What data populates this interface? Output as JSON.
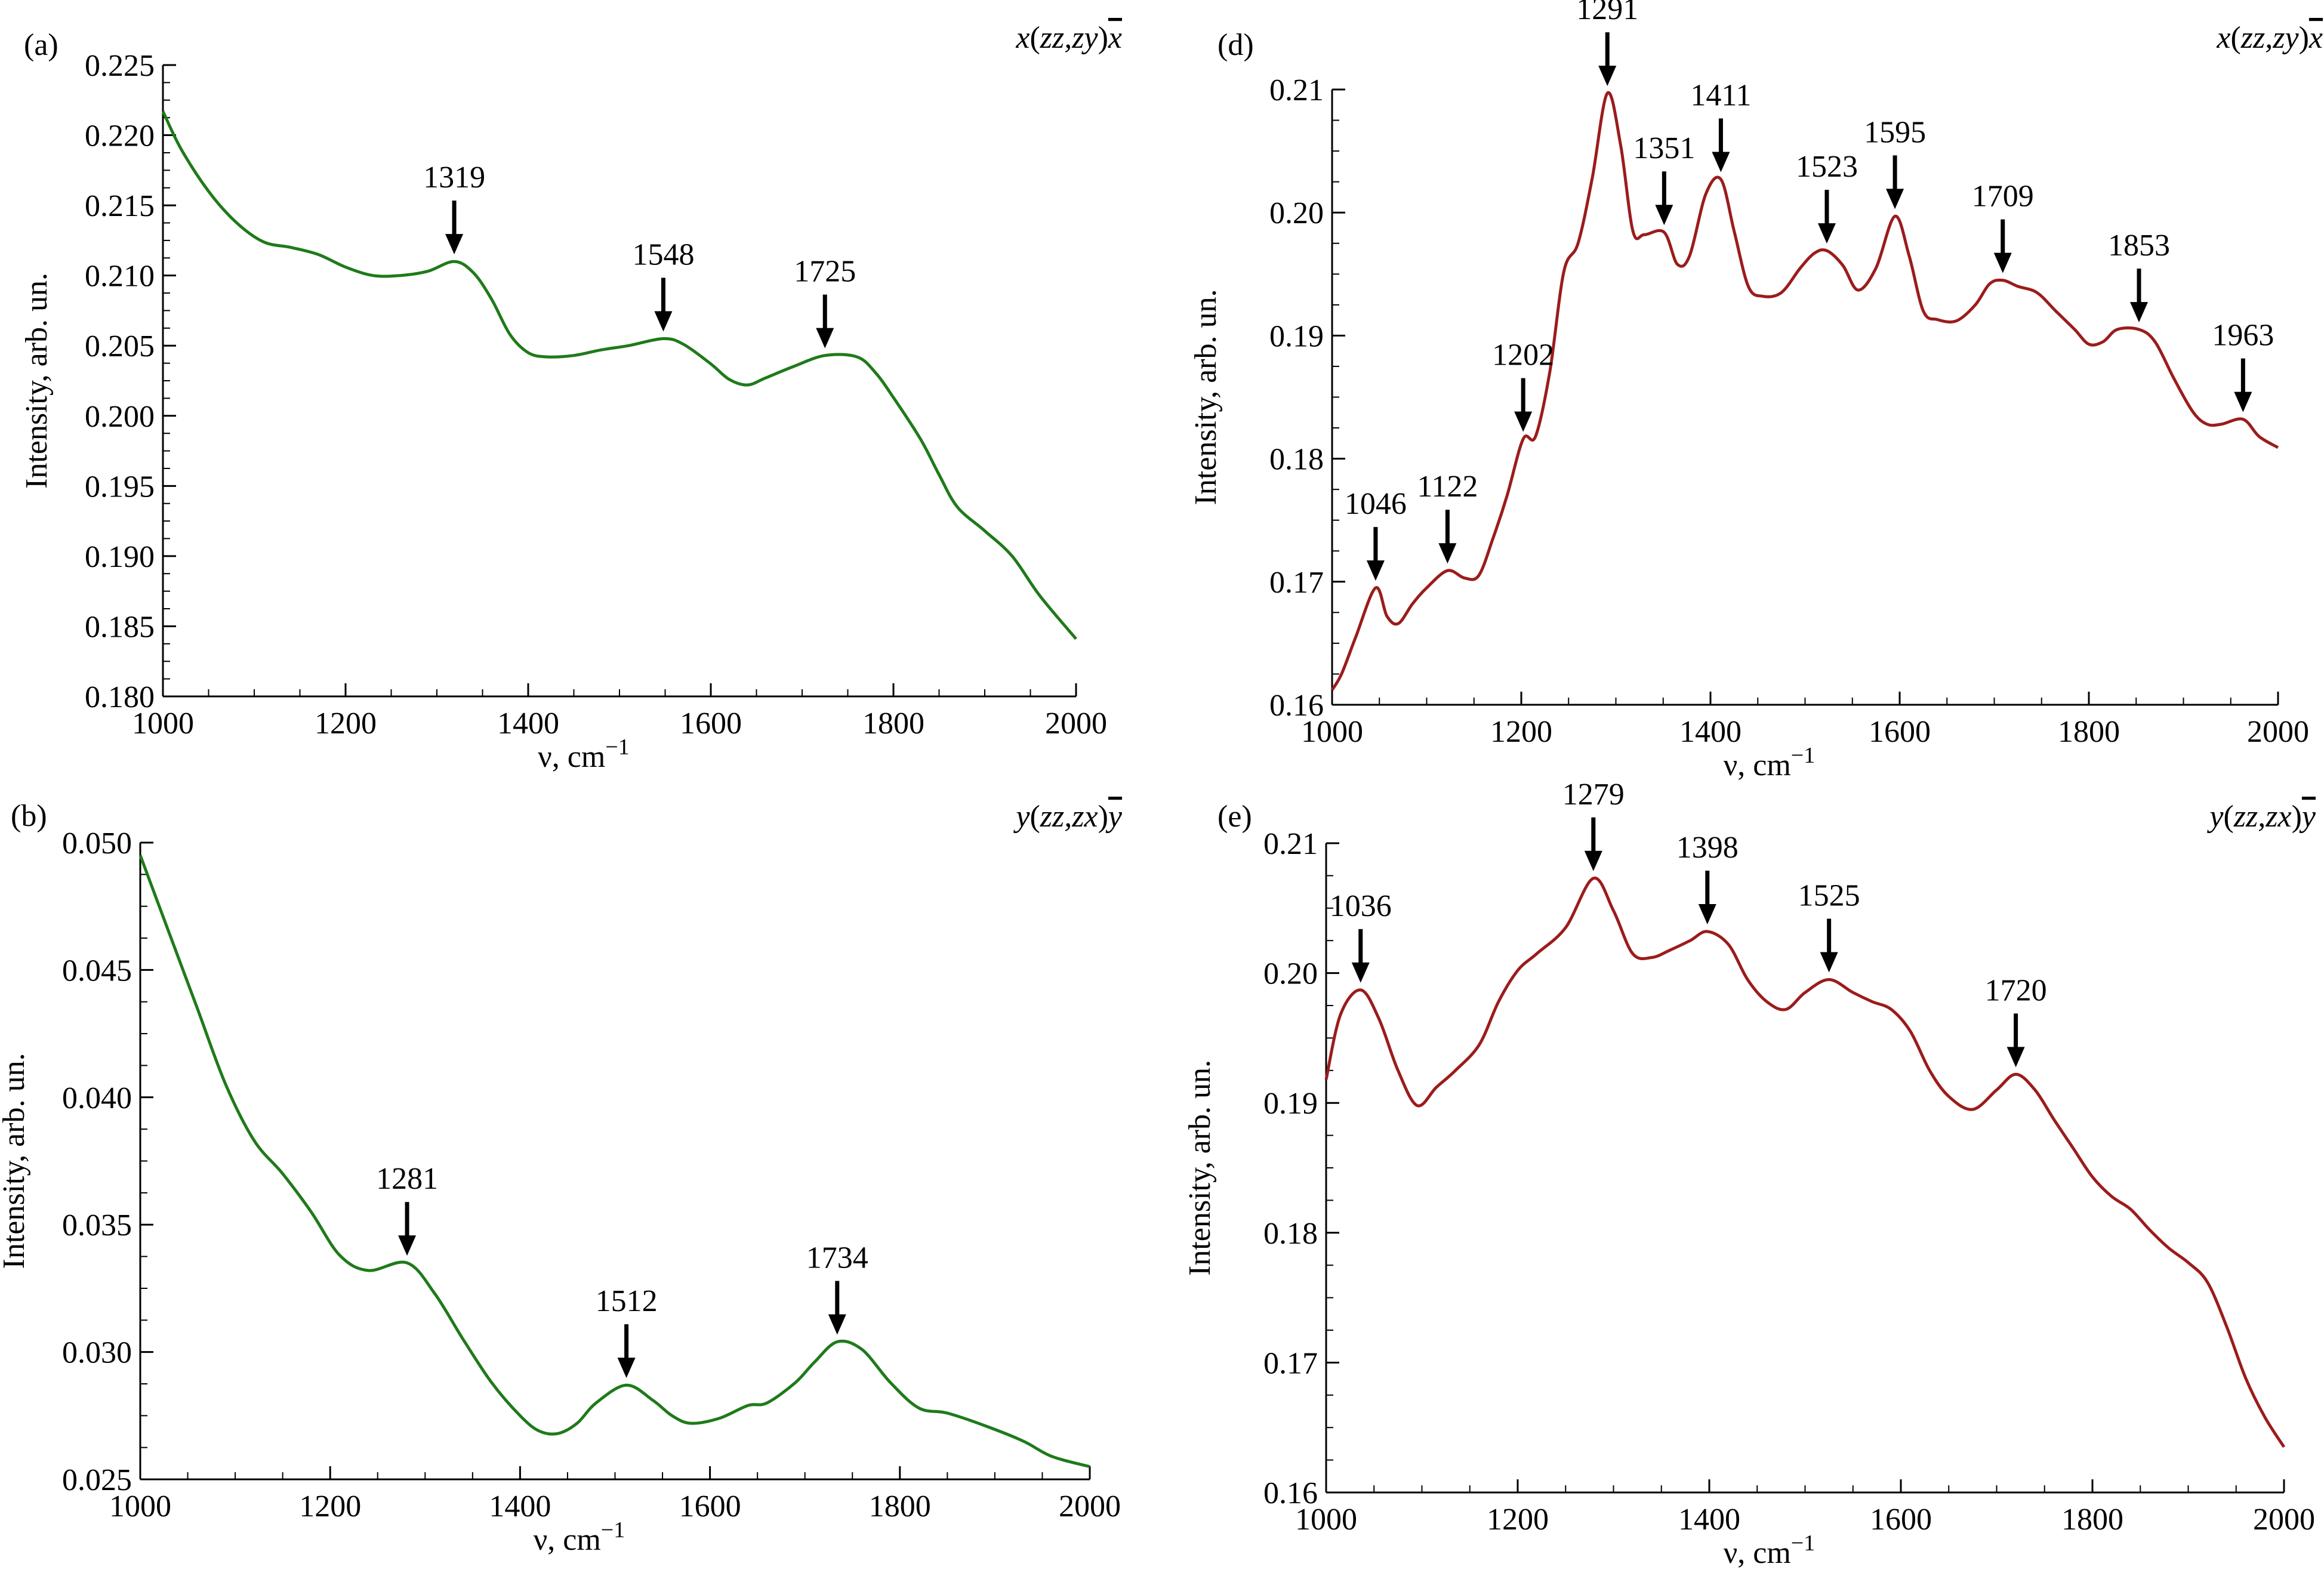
{
  "chart_data": [
    {
      "type": "line",
      "panel_label": "(a)",
      "geometry": "x(zz,zy)x̅",
      "xlabel": "ν, cm⁻¹",
      "ylabel": "Intensity, arb. un.",
      "xlim": [
        1000,
        2000
      ],
      "ylim": [
        0.18,
        0.225
      ],
      "xticks": [
        1000,
        1200,
        1400,
        1600,
        1800,
        2000
      ],
      "yticks": [
        "0.180",
        "0.185",
        "0.190",
        "0.195",
        "0.200",
        "0.205",
        "0.210",
        "0.215",
        "0.220",
        "0.225"
      ],
      "color": "#1f7a1a",
      "series": [
        {
          "name": "x(zz,zy)x̅",
          "x": [
            1000,
            1020,
            1050,
            1080,
            1110,
            1140,
            1170,
            1200,
            1230,
            1260,
            1290,
            1319,
            1340,
            1360,
            1380,
            1400,
            1420,
            1450,
            1480,
            1510,
            1548,
            1570,
            1600,
            1620,
            1640,
            1660,
            1690,
            1725,
            1760,
            1780,
            1800,
            1830,
            1850,
            1870,
            1900,
            1930,
            1960,
            2000
          ],
          "y": [
            0.2217,
            0.219,
            0.216,
            0.2138,
            0.2124,
            0.212,
            0.2115,
            0.2106,
            0.21,
            0.21,
            0.2103,
            0.211,
            0.2102,
            0.2083,
            0.2058,
            0.2045,
            0.2042,
            0.2043,
            0.2047,
            0.205,
            0.2055,
            0.2051,
            0.2037,
            0.2026,
            0.2022,
            0.2027,
            0.2035,
            0.2043,
            0.2042,
            0.2031,
            0.2013,
            0.1983,
            0.1958,
            0.1935,
            0.1918,
            0.19,
            0.1872,
            0.1841
          ]
        }
      ],
      "annotations": [
        {
          "label": "1319",
          "x": 1319,
          "y": 0.211
        },
        {
          "label": "1548",
          "x": 1548,
          "y": 0.2055
        },
        {
          "label": "1725",
          "x": 1725,
          "y": 0.2043
        }
      ]
    },
    {
      "type": "line",
      "panel_label": "(b)",
      "geometry": "y(zz,zx)y̅",
      "xlabel": "ν, cm⁻¹",
      "ylabel": "Intensity, arb. un.",
      "xlim": [
        1000,
        2000
      ],
      "ylim": [
        0.025,
        0.05
      ],
      "xticks": [
        1000,
        1200,
        1400,
        1600,
        1800,
        2000
      ],
      "yticks": [
        "0.025",
        "0.030",
        "0.035",
        "0.040",
        "0.045",
        "0.050"
      ],
      "color": "#1f7a1a",
      "series": [
        {
          "name": "y(zz,zx)y̅",
          "x": [
            1000,
            1030,
            1060,
            1090,
            1120,
            1150,
            1180,
            1210,
            1240,
            1281,
            1310,
            1340,
            1370,
            1400,
            1420,
            1440,
            1460,
            1480,
            1512,
            1540,
            1560,
            1580,
            1610,
            1640,
            1660,
            1690,
            1710,
            1734,
            1760,
            1790,
            1820,
            1850,
            1890,
            1930,
            1960,
            2000
          ],
          "y": [
            0.0495,
            0.0465,
            0.0435,
            0.0405,
            0.0383,
            0.037,
            0.0355,
            0.0338,
            0.0332,
            0.0335,
            0.0323,
            0.0305,
            0.0288,
            0.0275,
            0.0269,
            0.0268,
            0.0272,
            0.028,
            0.0287,
            0.0281,
            0.0275,
            0.0272,
            0.0274,
            0.0279,
            0.028,
            0.0288,
            0.0296,
            0.0304,
            0.0301,
            0.0288,
            0.0278,
            0.0276,
            0.0271,
            0.0265,
            0.0259,
            0.0255
          ]
        }
      ],
      "annotations": [
        {
          "label": "1281",
          "x": 1281,
          "y": 0.0335
        },
        {
          "label": "1512",
          "x": 1512,
          "y": 0.0287
        },
        {
          "label": "1734",
          "x": 1734,
          "y": 0.0304
        }
      ]
    },
    {
      "type": "line",
      "panel_label": "(d)",
      "geometry": "x(zz,zy)x̅",
      "xlabel": "ν, cm⁻¹",
      "ylabel": "Intensity, arb. un.",
      "xlim": [
        1000,
        2000
      ],
      "ylim": [
        0.16,
        0.21
      ],
      "xticks": [
        1000,
        1200,
        1400,
        1600,
        1800,
        2000
      ],
      "yticks": [
        "0.16",
        "0.17",
        "0.18",
        "0.19",
        "0.20",
        "0.21"
      ],
      "color": "#9b1c1c",
      "series": [
        {
          "name": "x(zz,zy)x̅",
          "x": [
            1000,
            1010,
            1025,
            1046,
            1058,
            1070,
            1085,
            1100,
            1122,
            1140,
            1155,
            1170,
            1185,
            1202,
            1215,
            1230,
            1245,
            1260,
            1275,
            1291,
            1305,
            1318,
            1330,
            1351,
            1365,
            1378,
            1395,
            1411,
            1425,
            1440,
            1455,
            1475,
            1495,
            1510,
            1523,
            1540,
            1556,
            1575,
            1595,
            1610,
            1625,
            1640,
            1660,
            1680,
            1695,
            1709,
            1725,
            1745,
            1765,
            1785,
            1800,
            1815,
            1830,
            1853,
            1870,
            1890,
            1910,
            1925,
            1940,
            1963,
            1980,
            2000
          ],
          "y": [
            0.1612,
            0.1625,
            0.1655,
            0.1695,
            0.1672,
            0.1666,
            0.1682,
            0.1695,
            0.1709,
            0.1703,
            0.1705,
            0.1735,
            0.177,
            0.1816,
            0.1818,
            0.187,
            0.1952,
            0.1975,
            0.2028,
            0.2097,
            0.2055,
            0.1985,
            0.1982,
            0.1984,
            0.1958,
            0.1965,
            0.2015,
            0.2027,
            0.1985,
            0.194,
            0.1932,
            0.1935,
            0.1955,
            0.1967,
            0.1969,
            0.1957,
            0.1937,
            0.1955,
            0.1997,
            0.1965,
            0.192,
            0.1913,
            0.1912,
            0.1925,
            0.1942,
            0.1945,
            0.194,
            0.1935,
            0.192,
            0.1905,
            0.1893,
            0.1895,
            0.1905,
            0.1905,
            0.1895,
            0.1865,
            0.1838,
            0.1828,
            0.1828,
            0.1832,
            0.1818,
            0.1809
          ]
        }
      ],
      "annotations": [
        {
          "label": "1046",
          "x": 1046,
          "y": 0.1695
        },
        {
          "label": "1122",
          "x": 1122,
          "y": 0.1709
        },
        {
          "label": "1202",
          "x": 1202,
          "y": 0.1816
        },
        {
          "label": "1291",
          "x": 1291,
          "y": 0.2097
        },
        {
          "label": "1351",
          "x": 1351,
          "y": 0.1984
        },
        {
          "label": "1411",
          "x": 1411,
          "y": 0.2027
        },
        {
          "label": "1523",
          "x": 1523,
          "y": 0.1969
        },
        {
          "label": "1595",
          "x": 1595,
          "y": 0.1997
        },
        {
          "label": "1709",
          "x": 1709,
          "y": 0.1945
        },
        {
          "label": "1853",
          "x": 1853,
          "y": 0.1905
        },
        {
          "label": "1963",
          "x": 1963,
          "y": 0.1832
        }
      ]
    },
    {
      "type": "line",
      "panel_label": "(e)",
      "geometry": "y(zz,zx)y̅",
      "xlabel": "ν, cm⁻¹",
      "ylabel": "Intensity, arb. un.",
      "xlim": [
        1000,
        2000
      ],
      "ylim": [
        0.16,
        0.21
      ],
      "xticks": [
        1000,
        1200,
        1400,
        1600,
        1800,
        2000
      ],
      "yticks": [
        "0.16",
        "0.17",
        "0.18",
        "0.19",
        "0.20",
        "0.21"
      ],
      "color": "#9b1c1c",
      "series": [
        {
          "name": "y(zz,zx)y̅",
          "x": [
            1000,
            1015,
            1036,
            1055,
            1075,
            1095,
            1115,
            1135,
            1160,
            1180,
            1200,
            1220,
            1250,
            1279,
            1300,
            1320,
            1340,
            1360,
            1380,
            1398,
            1420,
            1440,
            1460,
            1480,
            1500,
            1525,
            1550,
            1570,
            1590,
            1610,
            1630,
            1650,
            1675,
            1700,
            1720,
            1740,
            1760,
            1780,
            1800,
            1820,
            1840,
            1860,
            1880,
            1900,
            1920,
            1940,
            1960,
            1980,
            2000
          ],
          "y": [
            0.1918,
            0.1968,
            0.1987,
            0.1965,
            0.1925,
            0.1898,
            0.1912,
            0.1925,
            0.1945,
            0.1978,
            0.2002,
            0.2015,
            0.2035,
            0.2073,
            0.2048,
            0.2015,
            0.2012,
            0.2018,
            0.2025,
            0.2032,
            0.2022,
            0.1995,
            0.1978,
            0.1972,
            0.1985,
            0.1995,
            0.1985,
            0.1978,
            0.1972,
            0.1955,
            0.1925,
            0.1905,
            0.1895,
            0.191,
            0.1922,
            0.191,
            0.1887,
            0.1865,
            0.1843,
            0.1828,
            0.1818,
            0.1802,
            0.1788,
            0.1777,
            0.1762,
            0.1728,
            0.1688,
            0.1658,
            0.1635
          ]
        }
      ],
      "annotations": [
        {
          "label": "1036",
          "x": 1036,
          "y": 0.1987
        },
        {
          "label": "1279",
          "x": 1279,
          "y": 0.2073
        },
        {
          "label": "1398",
          "x": 1398,
          "y": 0.2032
        },
        {
          "label": "1525",
          "x": 1525,
          "y": 0.1995
        },
        {
          "label": "1720",
          "x": 1720,
          "y": 0.1922
        }
      ]
    }
  ]
}
